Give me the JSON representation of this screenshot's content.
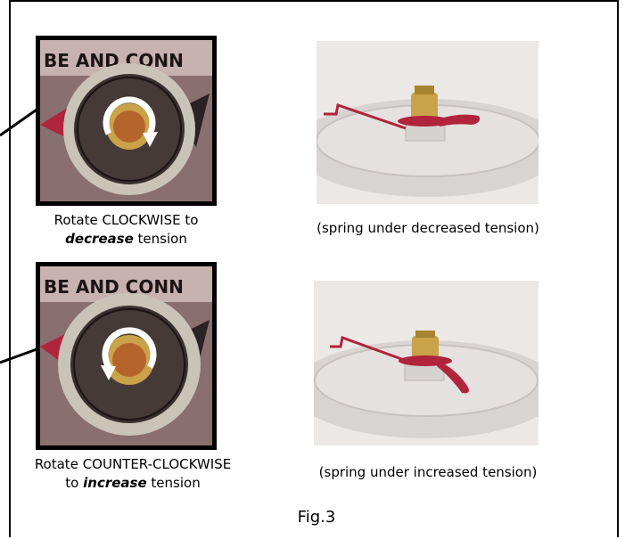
{
  "figure": {
    "label": "Fig.3"
  },
  "panels": [
    {
      "knob_caption_a": "Rotate CLOCKWISE to",
      "knob_caption_em": "decrease",
      "knob_caption_b": "tension",
      "knob_plate_text": "BE AND CONN",
      "knob_symbol": "clockwise-arrow-icon",
      "spring_caption": "(spring under decreased tension)"
    },
    {
      "knob_caption_a": "Rotate COUNTER-CLOCKWISE",
      "knob_caption_pre": "to",
      "knob_caption_em": "increase",
      "knob_caption_b": "tension",
      "knob_plate_text": "BE AND CONN",
      "knob_symbol": "counter-clockwise-arrow-icon",
      "spring_caption": "(spring under increased tension)"
    }
  ],
  "colors": {
    "frame": "#000000",
    "indicator_red": "#b0243c",
    "brass": "#c9a24a"
  }
}
